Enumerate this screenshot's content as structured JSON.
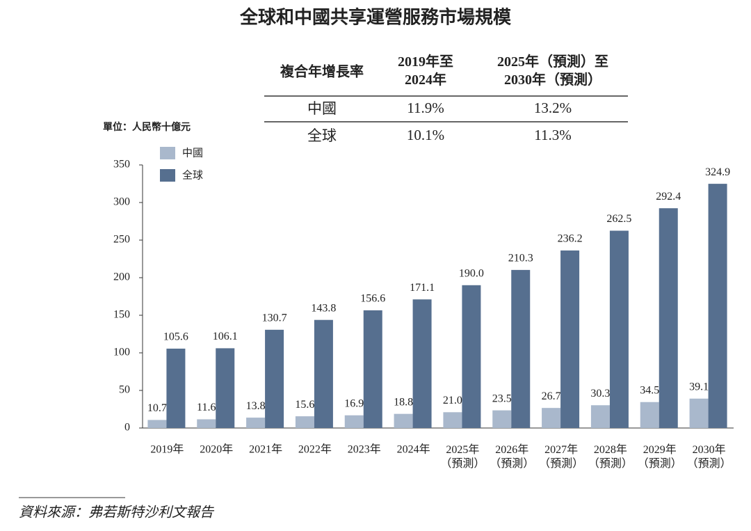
{
  "chart_data": {
    "type": "bar",
    "title": "全球和中國共享運營服務市場規模",
    "y_label": "單位：人民幣十億元",
    "categories": [
      "2019年",
      "2020年",
      "2021年",
      "2022年",
      "2023年",
      "2024年",
      "2025年\n（預測）",
      "2026年\n（預測）",
      "2027年\n（預測）",
      "2028年\n（預測）",
      "2029年\n（預測）",
      "2030年\n（預測）"
    ],
    "series": [
      {
        "name": "中國",
        "color": "#a9b8cc",
        "values": [
          10.7,
          11.6,
          13.8,
          15.6,
          16.9,
          18.8,
          21.0,
          23.5,
          26.7,
          30.3,
          34.5,
          39.1
        ],
        "value_labels": [
          "10.7",
          "11.6",
          "13.8",
          "15.6",
          "16.9",
          "18.8",
          "21.0",
          "23.5",
          "26.7",
          "30.3",
          "34.5",
          "39.1"
        ]
      },
      {
        "name": "全球",
        "color": "#566f8f",
        "values": [
          105.6,
          106.1,
          130.7,
          143.8,
          156.6,
          171.1,
          190.0,
          210.3,
          236.2,
          262.5,
          292.4,
          324.9
        ],
        "value_labels": [
          "105.6",
          "106.1",
          "130.7",
          "143.8",
          "156.6",
          "171.1",
          "190.0",
          "210.3",
          "236.2",
          "262.5",
          "292.4",
          "324.9"
        ]
      }
    ],
    "ylim": [
      0,
      350
    ],
    "yticks": [
      0,
      50,
      100,
      150,
      200,
      250,
      300,
      350
    ],
    "grid": false
  },
  "table": {
    "header": [
      "複合年增長率",
      "2019年至\n2024年",
      "2025年（預測）至\n2030年（預測）"
    ],
    "rows": [
      [
        "中國",
        "11.9%",
        "13.2%"
      ],
      [
        "全球",
        "10.1%",
        "11.3%"
      ]
    ]
  },
  "source": "資料來源：弗若斯特沙利文報告"
}
